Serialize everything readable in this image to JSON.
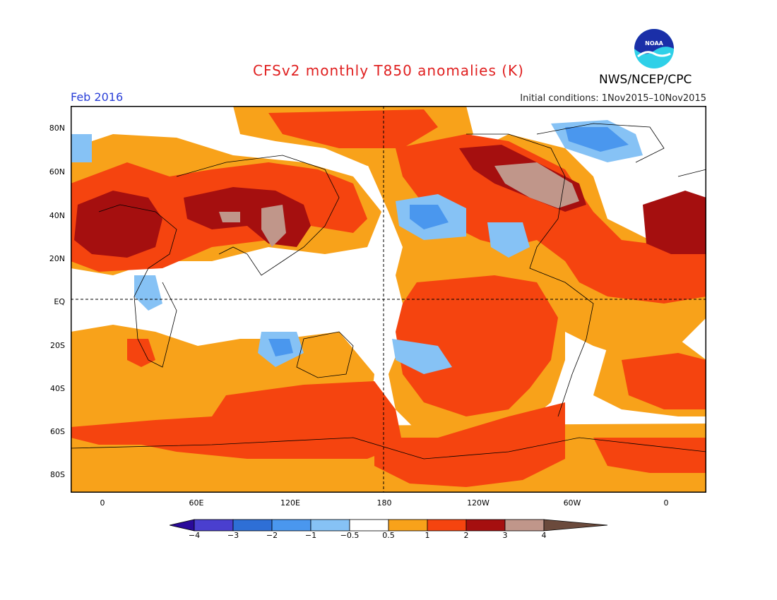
{
  "header": {
    "title": "CFSv2 monthly T850 anomalies (K)",
    "agency": "NWS/NCEP/CPC",
    "period": "Feb 2016",
    "initial_conditions": "Initial conditions: 1Nov2015–10Nov2015",
    "logo_text": "NOAA"
  },
  "map": {
    "lat_labels": [
      "80N",
      "60N",
      "40N",
      "20N",
      "EQ",
      "20S",
      "40S",
      "60S",
      "80S"
    ],
    "lon_labels": [
      "0",
      "60E",
      "120E",
      "180",
      "120W",
      "60W",
      "0"
    ]
  },
  "colorbar": {
    "labels": [
      "−4",
      "−3",
      "−2",
      "−1",
      "−0.5",
      "0.5",
      "1",
      "2",
      "3",
      "4"
    ],
    "colors": [
      "#2a0a9a",
      "#4a3fcf",
      "#2e6fd6",
      "#4a97ee",
      "#86c2f5",
      "#ffffff",
      "#f8a21a",
      "#f5440f",
      "#a50f0f",
      "#c0968a",
      "#6b4a3c"
    ]
  }
}
